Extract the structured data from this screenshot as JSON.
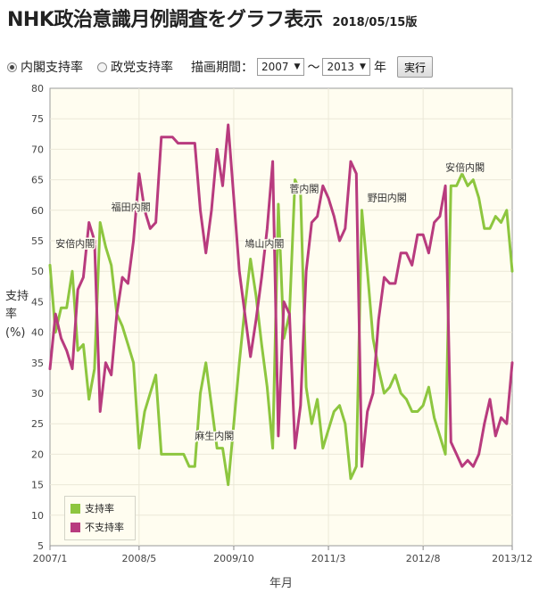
{
  "header": {
    "title": "NHK政治意識月例調査をグラフ表示",
    "version": "2018/05/15版"
  },
  "controls": {
    "radio_cabinet": "内閣支持率",
    "radio_party": "政党支持率",
    "period_label": "描画期間：",
    "start_year": "2007",
    "tilde": "〜",
    "end_year": "2013",
    "year_suffix": "年",
    "run_label": "実行"
  },
  "colors": {
    "support": "#8dc63f",
    "nonsupport": "#b83b7e",
    "plot_bg": "#fffdf0",
    "grid": "#ebe8d8"
  },
  "chart_data": {
    "type": "line",
    "xlabel": "年月",
    "ylabel": "支持率(%)",
    "ylim": [
      5,
      80
    ],
    "yticks": [
      5,
      10,
      15,
      20,
      25,
      30,
      35,
      40,
      45,
      50,
      55,
      60,
      65,
      70,
      75,
      80
    ],
    "xlim": [
      "2007-01",
      "2013-12"
    ],
    "xticks": [
      "2007/1",
      "2008/5",
      "2009/10",
      "2011/3",
      "2012/8",
      "2013/12"
    ],
    "grid": true,
    "legend_position": "bottom-left",
    "series": [
      {
        "name": "支持率",
        "color": "#8dc63f",
        "points": [
          [
            "2007-01",
            51
          ],
          [
            "2007-02",
            40
          ],
          [
            "2007-03",
            44
          ],
          [
            "2007-04",
            44
          ],
          [
            "2007-05",
            50
          ],
          [
            "2007-06",
            37
          ],
          [
            "2007-07",
            38
          ],
          [
            "2007-08",
            29
          ],
          [
            "2007-09",
            34
          ],
          [
            "2007-10",
            58
          ],
          [
            "2007-11",
            54
          ],
          [
            "2007-12",
            51
          ],
          [
            "2008-01",
            43
          ],
          [
            "2008-02",
            41
          ],
          [
            "2008-03",
            38
          ],
          [
            "2008-04",
            35
          ],
          [
            "2008-05",
            21
          ],
          [
            "2008-06",
            27
          ],
          [
            "2008-07",
            30
          ],
          [
            "2008-08",
            33
          ],
          [
            "2008-09",
            20
          ],
          [
            "2008-10",
            20
          ],
          [
            "2008-11",
            20
          ],
          [
            "2008-12",
            20
          ],
          [
            "2009-01",
            20
          ],
          [
            "2009-02",
            18
          ],
          [
            "2009-03",
            18
          ],
          [
            "2009-04",
            30
          ],
          [
            "2009-05",
            35
          ],
          [
            "2009-06",
            28
          ],
          [
            "2009-07",
            21
          ],
          [
            "2009-08",
            21
          ],
          [
            "2009-09",
            15
          ],
          [
            "2009-10",
            25
          ],
          [
            "2009-11",
            35
          ],
          [
            "2009-12",
            44
          ],
          [
            "2010-01",
            52
          ],
          [
            "2010-02",
            46
          ],
          [
            "2010-03",
            38
          ],
          [
            "2010-04",
            31
          ],
          [
            "2010-05",
            21
          ],
          [
            "2010-06",
            61
          ],
          [
            "2010-07",
            39
          ],
          [
            "2010-08",
            43
          ],
          [
            "2010-09",
            65
          ],
          [
            "2010-10",
            63
          ],
          [
            "2010-11",
            31
          ],
          [
            "2010-12",
            25
          ],
          [
            "2011-01",
            29
          ],
          [
            "2011-02",
            21
          ],
          [
            "2011-03",
            24
          ],
          [
            "2011-04",
            27
          ],
          [
            "2011-05",
            28
          ],
          [
            "2011-06",
            25
          ],
          [
            "2011-07",
            16
          ],
          [
            "2011-08",
            18
          ],
          [
            "2011-09",
            60
          ],
          [
            "2011-10",
            50
          ],
          [
            "2011-11",
            39
          ],
          [
            "2011-12",
            34
          ],
          [
            "2012-01",
            30
          ],
          [
            "2012-02",
            31
          ],
          [
            "2012-03",
            33
          ],
          [
            "2012-04",
            30
          ],
          [
            "2012-05",
            29
          ],
          [
            "2012-06",
            27
          ],
          [
            "2012-07",
            27
          ],
          [
            "2012-08",
            28
          ],
          [
            "2012-09",
            31
          ],
          [
            "2012-10",
            26
          ],
          [
            "2012-11",
            23
          ],
          [
            "2012-12",
            20
          ],
          [
            "2013-01",
            64
          ],
          [
            "2013-02",
            64
          ],
          [
            "2013-03",
            66
          ],
          [
            "2013-04",
            64
          ],
          [
            "2013-05",
            65
          ],
          [
            "2013-06",
            62
          ],
          [
            "2013-07",
            57
          ],
          [
            "2013-08",
            57
          ],
          [
            "2013-09",
            59
          ],
          [
            "2013-10",
            58
          ],
          [
            "2013-11",
            60
          ],
          [
            "2013-12",
            50
          ]
        ]
      },
      {
        "name": "不支持率",
        "color": "#b83b7e",
        "points": [
          [
            "2007-01",
            34
          ],
          [
            "2007-02",
            43
          ],
          [
            "2007-03",
            39
          ],
          [
            "2007-04",
            37
          ],
          [
            "2007-05",
            34
          ],
          [
            "2007-06",
            47
          ],
          [
            "2007-07",
            49
          ],
          [
            "2007-08",
            58
          ],
          [
            "2007-09",
            55
          ],
          [
            "2007-10",
            27
          ],
          [
            "2007-11",
            35
          ],
          [
            "2007-12",
            33
          ],
          [
            "2008-01",
            43
          ],
          [
            "2008-02",
            49
          ],
          [
            "2008-03",
            48
          ],
          [
            "2008-04",
            55
          ],
          [
            "2008-05",
            66
          ],
          [
            "2008-06",
            60
          ],
          [
            "2008-07",
            57
          ],
          [
            "2008-08",
            58
          ],
          [
            "2008-09",
            72
          ],
          [
            "2008-10",
            72
          ],
          [
            "2008-11",
            72
          ],
          [
            "2008-12",
            71
          ],
          [
            "2009-01",
            71
          ],
          [
            "2009-02",
            71
          ],
          [
            "2009-03",
            71
          ],
          [
            "2009-04",
            60
          ],
          [
            "2009-05",
            53
          ],
          [
            "2009-06",
            60
          ],
          [
            "2009-07",
            70
          ],
          [
            "2009-08",
            64
          ],
          [
            "2009-09",
            74
          ],
          [
            "2009-10",
            62
          ],
          [
            "2009-11",
            50
          ],
          [
            "2009-12",
            43
          ],
          [
            "2010-01",
            36
          ],
          [
            "2010-02",
            42
          ],
          [
            "2010-03",
            49
          ],
          [
            "2010-04",
            57
          ],
          [
            "2010-05",
            68
          ],
          [
            "2010-06",
            23
          ],
          [
            "2010-07",
            45
          ],
          [
            "2010-08",
            43
          ],
          [
            "2010-09",
            21
          ],
          [
            "2010-10",
            28
          ],
          [
            "2010-11",
            50
          ],
          [
            "2010-12",
            58
          ],
          [
            "2011-01",
            59
          ],
          [
            "2011-02",
            64
          ],
          [
            "2011-03",
            62
          ],
          [
            "2011-04",
            59
          ],
          [
            "2011-05",
            55
          ],
          [
            "2011-06",
            57
          ],
          [
            "2011-07",
            68
          ],
          [
            "2011-08",
            66
          ],
          [
            "2011-09",
            18
          ],
          [
            "2011-10",
            27
          ],
          [
            "2011-11",
            30
          ],
          [
            "2011-12",
            42
          ],
          [
            "2012-01",
            49
          ],
          [
            "2012-02",
            48
          ],
          [
            "2012-03",
            48
          ],
          [
            "2012-04",
            53
          ],
          [
            "2012-05",
            53
          ],
          [
            "2012-06",
            51
          ],
          [
            "2012-07",
            56
          ],
          [
            "2012-08",
            56
          ],
          [
            "2012-09",
            53
          ],
          [
            "2012-10",
            58
          ],
          [
            "2012-11",
            59
          ],
          [
            "2012-12",
            64
          ],
          [
            "2013-01",
            22
          ],
          [
            "2013-02",
            20
          ],
          [
            "2013-03",
            18
          ],
          [
            "2013-04",
            19
          ],
          [
            "2013-05",
            18
          ],
          [
            "2013-06",
            20
          ],
          [
            "2013-07",
            25
          ],
          [
            "2013-08",
            29
          ],
          [
            "2013-09",
            23
          ],
          [
            "2013-10",
            26
          ],
          [
            "2013-11",
            25
          ],
          [
            "2013-12",
            35
          ]
        ]
      }
    ],
    "annotations": [
      {
        "text": "安倍内閣",
        "date": "2007-02",
        "value": 54
      },
      {
        "text": "福田内閣",
        "date": "2007-12",
        "value": 60
      },
      {
        "text": "麻生内閣",
        "date": "2009-03",
        "value": 22.5
      },
      {
        "text": "鳩山内閣",
        "date": "2009-12",
        "value": 54
      },
      {
        "text": "菅内閣",
        "date": "2010-08",
        "value": 63
      },
      {
        "text": "野田内閣",
        "date": "2011-10",
        "value": 61.5
      },
      {
        "text": "安倍内閣",
        "date": "2012-12",
        "value": 66.5
      }
    ]
  }
}
